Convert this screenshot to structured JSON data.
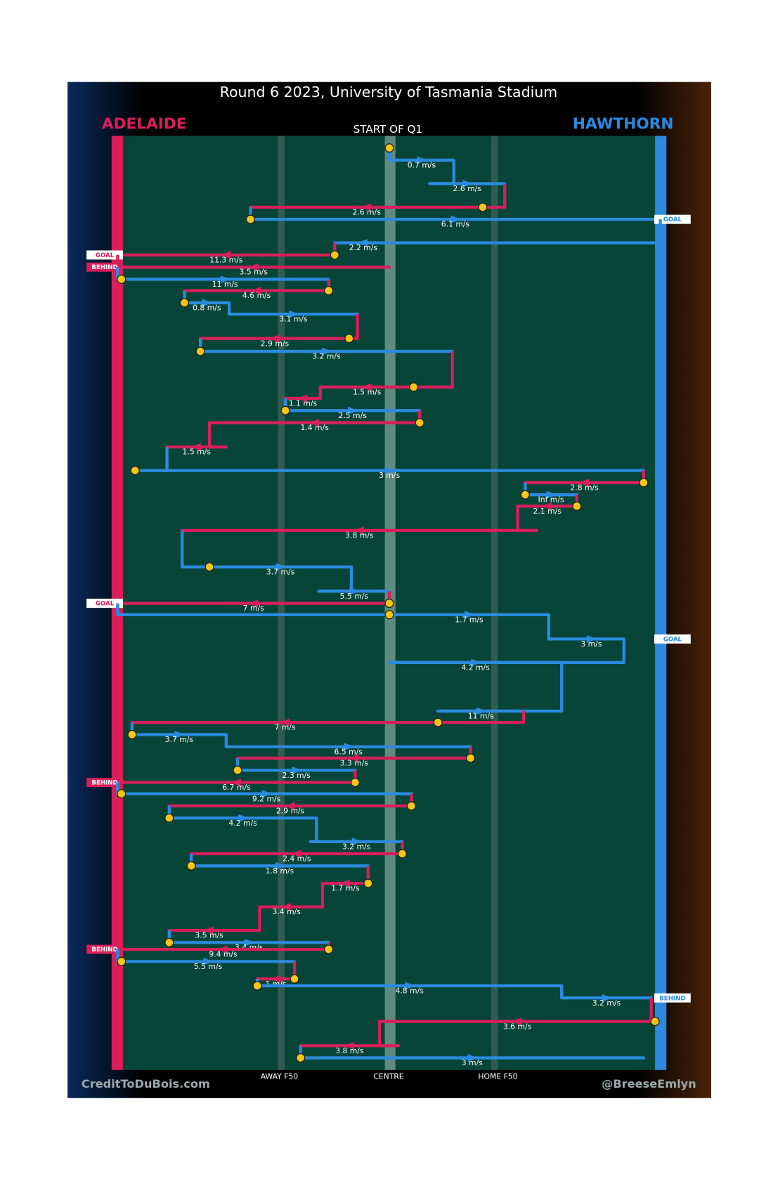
{
  "title": "Round 6 2023, University of Tasmania Stadium",
  "teams": {
    "left": "ADELAIDE",
    "right": "HAWTHORN"
  },
  "start_label": "START OF Q1",
  "zones": {
    "away": "AWAY F50",
    "centre": "CENTRE",
    "home": "HOME F50"
  },
  "credits": {
    "left": "CreditToDuBois.com",
    "right": "@BreeseEmlyn"
  },
  "possessions": [
    {
      "color": "#2b8ae0",
      "speed": "0.7 m/s"
    },
    {
      "color": "#2b8ae0",
      "speed": "2.6 m/s"
    },
    {
      "color": "#d81f5b",
      "speed": "2.6 m/s"
    },
    {
      "color": "#2b8ae0",
      "speed": "6.1 m/s",
      "result": "GOAL"
    },
    {
      "color": "#2b8ae0",
      "speed": "2.2 m/s"
    },
    {
      "color": "#d81f5b",
      "speed": "11.3 m/s",
      "result": "GOAL"
    },
    {
      "color": "#d81f5b",
      "speed": "3.5 m/s",
      "result": "BEHIND"
    },
    {
      "color": "#2b8ae0",
      "speed": "11 m/s"
    },
    {
      "color": "#d81f5b",
      "speed": "4.6 m/s"
    },
    {
      "color": "#2b8ae0",
      "speed": "0.8 m/s"
    },
    {
      "color": "#2b8ae0",
      "speed": "3.1 m/s"
    },
    {
      "color": "#d81f5b",
      "speed": "2.9 m/s"
    },
    {
      "color": "#2b8ae0",
      "speed": "3.2 m/s"
    },
    {
      "color": "#d81f5b",
      "speed": "1.5 m/s"
    },
    {
      "color": "#d81f5b",
      "speed": "1.1 m/s"
    },
    {
      "color": "#2b8ae0",
      "speed": "2.5 m/s"
    },
    {
      "color": "#d81f5b",
      "speed": "1.4 m/s"
    },
    {
      "color": "#d81f5b",
      "speed": "1.5 m/s"
    },
    {
      "color": "#2b8ae0",
      "speed": "3 m/s"
    },
    {
      "color": "#d81f5b",
      "speed": "2.8 m/s"
    },
    {
      "color": "#2b8ae0",
      "speed": "Inf m/s"
    },
    {
      "color": "#d81f5b",
      "speed": "2.1 m/s"
    },
    {
      "color": "#d81f5b",
      "speed": "3.8 m/s"
    },
    {
      "color": "#2b8ae0",
      "speed": "3.7 m/s"
    },
    {
      "color": "#2b8ae0",
      "speed": "5.5 m/s"
    },
    {
      "color": "#d81f5b",
      "speed": "7 m/s",
      "result": "GOAL"
    },
    {
      "color": "#2b8ae0",
      "speed": "1.7 m/s"
    },
    {
      "color": "#2b8ae0",
      "speed": "3 m/s",
      "result": "GOAL"
    },
    {
      "color": "#2b8ae0",
      "speed": "4.2 m/s"
    },
    {
      "color": "#2b8ae0",
      "speed": "11 m/s"
    },
    {
      "color": "#d81f5b",
      "speed": "7 m/s"
    },
    {
      "color": "#2b8ae0",
      "speed": "3.7 m/s"
    },
    {
      "color": "#2b8ae0",
      "speed": "6.5 m/s"
    },
    {
      "color": "#d81f5b",
      "speed": "3.3 m/s"
    },
    {
      "color": "#2b8ae0",
      "speed": "2.3 m/s"
    },
    {
      "color": "#d81f5b",
      "speed": "6.7 m/s",
      "result": "BEHIND"
    },
    {
      "color": "#2b8ae0",
      "speed": "9.2 m/s"
    },
    {
      "color": "#d81f5b",
      "speed": "2.9 m/s"
    },
    {
      "color": "#2b8ae0",
      "speed": "4.2 m/s"
    },
    {
      "color": "#2b8ae0",
      "speed": "3.2 m/s"
    },
    {
      "color": "#d81f5b",
      "speed": "2.4 m/s"
    },
    {
      "color": "#2b8ae0",
      "speed": "1.8 m/s"
    },
    {
      "color": "#d81f5b",
      "speed": "1.7 m/s"
    },
    {
      "color": "#d81f5b",
      "speed": "3.4 m/s"
    },
    {
      "color": "#d81f5b",
      "speed": "3.5 m/s"
    },
    {
      "color": "#2b8ae0",
      "speed": "3.4 m/s"
    },
    {
      "color": "#d81f5b",
      "speed": "9.4 m/s",
      "result": "BEHIND"
    },
    {
      "color": "#2b8ae0",
      "speed": "5.5 m/s"
    },
    {
      "color": "#d81f5b",
      "speed": "1 m/s"
    },
    {
      "color": "#2b8ae0",
      "speed": "4.8 m/s"
    },
    {
      "color": "#2b8ae0",
      "speed": "3.2 m/s",
      "result": "BEHIND"
    },
    {
      "color": "#d81f5b",
      "speed": "3.6 m/s"
    },
    {
      "color": "#d81f5b",
      "speed": "3.8 m/s"
    },
    {
      "color": "#2b8ae0",
      "speed": "3 m/s"
    }
  ]
}
